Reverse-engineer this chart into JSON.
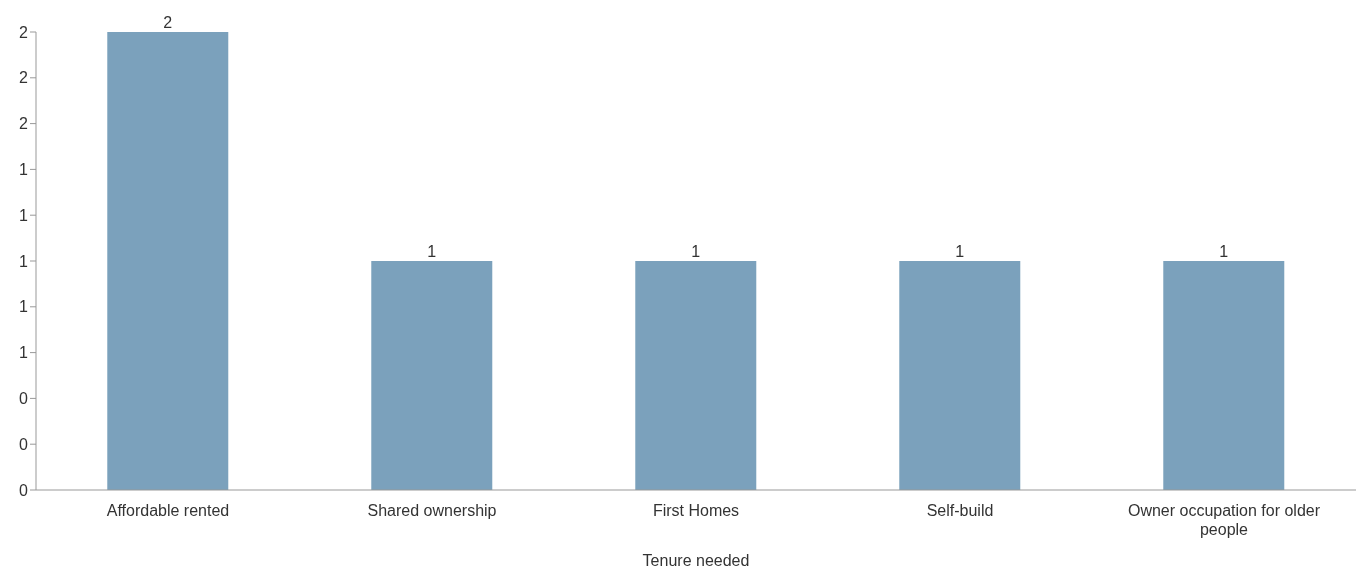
{
  "chart_data": {
    "type": "bar",
    "xlabel": "Tenure needed",
    "categories": [
      "Affordable rented",
      "Shared ownership",
      "First Homes",
      "Self-build",
      "Owner occupation for older people"
    ],
    "values": [
      2,
      1,
      1,
      1,
      1
    ],
    "color": "#7ba1bc",
    "data_labels": true,
    "grid": false,
    "legend": false,
    "ylim": [
      0,
      2
    ],
    "yticks": [
      0,
      {
        "value": 0.2,
        "label": "0"
      },
      {
        "value": 0.4,
        "label": "0"
      },
      {
        "value": 0.6,
        "label": "1"
      },
      {
        "value": 0.8,
        "label": "1"
      },
      {
        "value": 1.0,
        "label": "1"
      },
      {
        "value": 1.2,
        "label": "1"
      },
      {
        "value": 1.4,
        "label": "1"
      },
      {
        "value": 1.6,
        "label": "2"
      },
      {
        "value": 1.8,
        "label": "2"
      },
      {
        "value": 2.0,
        "label": "2"
      }
    ]
  }
}
